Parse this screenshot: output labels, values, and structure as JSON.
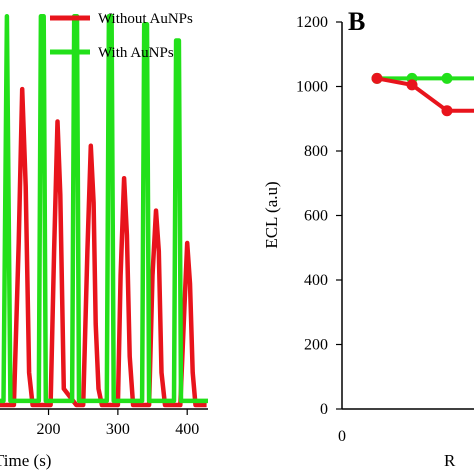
{
  "chart_data": [
    {
      "type": "line",
      "panel": "",
      "xlabel": "Time (s)",
      "ylabel": "",
      "xlim": [
        130,
        430
      ],
      "ylim": [
        -10,
        1000
      ],
      "xticks": [
        200,
        300,
        400
      ],
      "legend": "top-right",
      "series": [
        {
          "name": "Without AuNPs",
          "color": "#e8141c",
          "x": [
            130,
            150,
            157,
            162,
            167,
            172,
            177,
            195,
            203,
            208,
            213,
            217,
            222,
            240,
            250,
            256,
            261,
            265,
            268,
            272,
            277,
            290,
            300,
            304,
            309,
            313,
            317,
            322,
            335,
            345,
            350,
            355,
            359,
            363,
            368,
            380,
            390,
            396,
            400,
            404,
            408,
            412,
            428
          ],
          "y": [
            0,
            0,
            400,
            780,
            540,
            80,
            0,
            0,
            0,
            380,
            700,
            520,
            40,
            0,
            0,
            380,
            640,
            500,
            200,
            40,
            0,
            0,
            0,
            320,
            560,
            420,
            120,
            0,
            0,
            0,
            320,
            480,
            380,
            80,
            0,
            0,
            0,
            240,
            400,
            300,
            80,
            0,
            0
          ]
        },
        {
          "name": "With AuNPs",
          "color": "#22e01a",
          "x": [
            130,
            135,
            140,
            145,
            180,
            186,
            189,
            193,
            196,
            202,
            228,
            234,
            237,
            241,
            244,
            250,
            278,
            284,
            287,
            291,
            294,
            300,
            330,
            335,
            338,
            342,
            345,
            351,
            375,
            381,
            384,
            388,
            391,
            397,
            430
          ],
          "y": [
            10,
            10,
            960,
            10,
            10,
            10,
            960,
            960,
            10,
            10,
            10,
            10,
            960,
            960,
            10,
            10,
            10,
            10,
            960,
            960,
            10,
            10,
            10,
            10,
            940,
            940,
            10,
            10,
            10,
            10,
            900,
            900,
            10,
            10,
            10
          ]
        }
      ]
    },
    {
      "type": "line",
      "panel": "B",
      "xlabel": "R",
      "ylabel": "ECL (a.u)",
      "xlim": [
        0,
        5
      ],
      "ylim": [
        0,
        1200
      ],
      "yticks": [
        0,
        200,
        400,
        600,
        800,
        1000,
        1200
      ],
      "xticks": [
        0
      ],
      "series": [
        {
          "name": "With AuNPs",
          "color": "#22e01a",
          "x": [
            1,
            2,
            3,
            4,
            5
          ],
          "y": [
            1025,
            1025,
            1025,
            1025,
            1025
          ]
        },
        {
          "name": "Without AuNPs",
          "color": "#e8141c",
          "x": [
            1,
            2,
            3,
            4,
            5
          ],
          "y": [
            1025,
            1005,
            925,
            925,
            925
          ]
        }
      ]
    }
  ]
}
